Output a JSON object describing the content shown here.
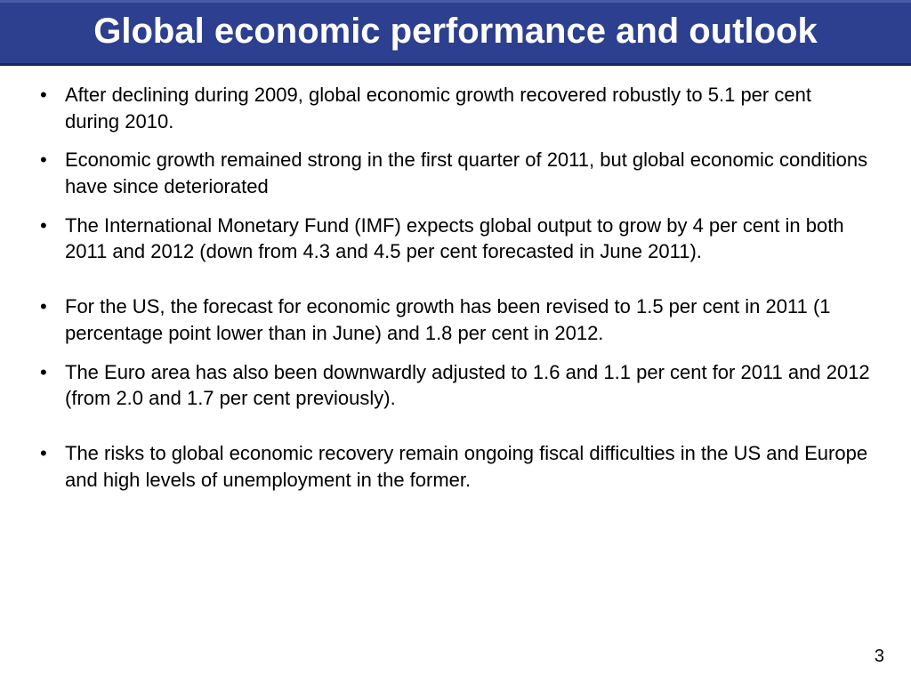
{
  "header": {
    "title": "Global economic performance and outlook",
    "background_color": "#2d3f8f",
    "text_color": "#ffffff",
    "title_fontsize": 40,
    "border_top_color": "#4a5ba8",
    "border_bottom_color": "#1a2560"
  },
  "content": {
    "bullets": [
      {
        "text": "After declining during 2009, global economic growth recovered robustly to 5.1 per cent during 2010.",
        "gap_after": false
      },
      {
        "text": "Economic growth remained strong in the first quarter of 2011, but global economic conditions have since deteriorated",
        "gap_after": false
      },
      {
        "text": "The International Monetary Fund (IMF) expects global output to grow by 4 per cent in both 2011 and 2012 (down from 4.3 and 4.5 per cent forecasted in June 2011).",
        "gap_after": true
      },
      {
        "text": "For the US, the forecast for economic growth has been revised to 1.5 per cent in 2011 (1 percentage point lower than in June) and 1.8 per cent in 2012.",
        "gap_after": false
      },
      {
        "text": "The Euro area has also been downwardly adjusted to 1.6 and 1.1 per cent for 2011 and 2012 (from 2.0 and 1.7 per cent previously).",
        "gap_after": true
      },
      {
        "text": "The risks to global economic recovery remain ongoing fiscal difficulties in the US and Europe and high levels of unemployment in the former.",
        "gap_after": false
      }
    ],
    "bullet_fontsize": 22,
    "text_color": "#000000"
  },
  "page_number": "3",
  "background_color": "#ffffff"
}
